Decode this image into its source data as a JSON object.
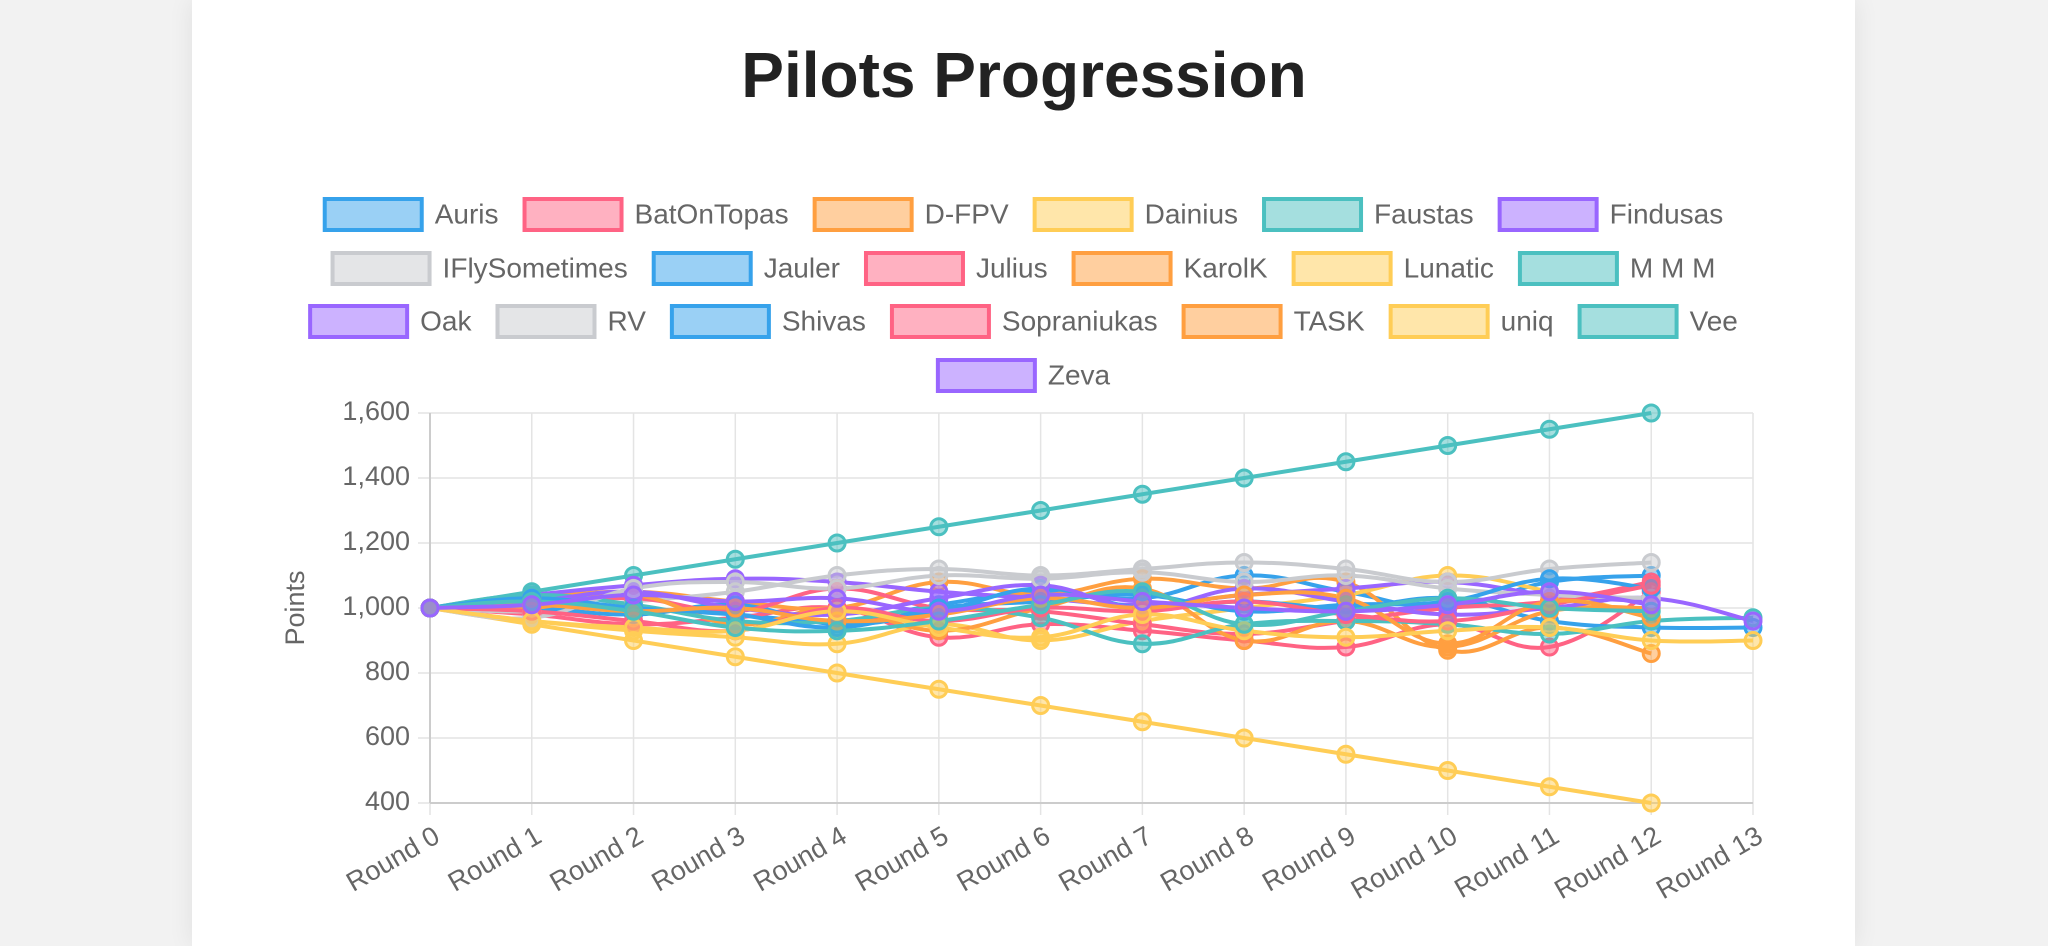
{
  "chart_data": {
    "type": "line",
    "title": "Pilots Progression",
    "ylabel": "Points",
    "categories": [
      "Round 0",
      "Round 1",
      "Round 2",
      "Round 3",
      "Round 4",
      "Round 5",
      "Round 6",
      "Round 7",
      "Round 8",
      "Round 9",
      "Round 10",
      "Round 11",
      "Round 12",
      "Round 13"
    ],
    "ylim": [
      400,
      1600
    ],
    "yticks": [
      400,
      600,
      800,
      {
        "value": 1000,
        "label": "1,000"
      },
      {
        "value": 1200,
        "label": "1,200"
      },
      {
        "value": 1400,
        "label": "1,400"
      },
      {
        "value": 1600,
        "label": "1,600"
      }
    ],
    "grid": true,
    "legend": "top",
    "series": [
      {
        "name": "Auris",
        "color": "#36a2eb",
        "values": [
          1000,
          1020,
          1000,
          980,
          960,
          1010,
          1050,
          1030,
          1100,
          1050,
          1000,
          1080,
          1100,
          null
        ]
      },
      {
        "name": "BatOnTopas",
        "color": "#ff6384",
        "values": [
          1000,
          980,
          950,
          970,
          1000,
          910,
          950,
          930,
          900,
          880,
          950,
          880,
          1050,
          null
        ]
      },
      {
        "name": "D-FPV",
        "color": "#ff9f40",
        "values": [
          1000,
          1030,
          1050,
          1020,
          1000,
          1080,
          1040,
          1090,
          1060,
          1080,
          870,
          940,
          860,
          null
        ]
      },
      {
        "name": "Dainius",
        "color": "#ffcd56",
        "values": [
          1000,
          960,
          930,
          910,
          890,
          950,
          900,
          960,
          1000,
          1040,
          1100,
          1050,
          970,
          null
        ]
      },
      {
        "name": "Faustas",
        "color": "#4bc0c0",
        "values": [
          1000,
          1050,
          1100,
          1150,
          1200,
          1250,
          1300,
          1350,
          1400,
          1450,
          1500,
          1550,
          1600,
          null
        ]
      },
      {
        "name": "Findusas",
        "color": "#9966ff",
        "values": [
          1000,
          1040,
          1070,
          1090,
          1080,
          1050,
          1030,
          1010,
          1040,
          1060,
          1080,
          1040,
          1020,
          null
        ]
      },
      {
        "name": "IFlySometimes",
        "color": "#c9cbcf",
        "values": [
          1000,
          990,
          1020,
          1050,
          1100,
          1120,
          1100,
          1120,
          1140,
          1120,
          1080,
          1120,
          1140,
          null
        ]
      },
      {
        "name": "Jauler",
        "color": "#36a2eb",
        "values": [
          1000,
          1000,
          980,
          1010,
          950,
          990,
          1060,
          1000,
          1020,
          1000,
          1030,
          960,
          940,
          940
        ]
      },
      {
        "name": "Julius",
        "color": "#ff6384",
        "values": [
          1000,
          1010,
          1030,
          990,
          1060,
          1000,
          990,
          950,
          920,
          960,
          1000,
          1020,
          1080,
          null
        ]
      },
      {
        "name": "KarolK",
        "color": "#ff9f40",
        "values": [
          1000,
          1000,
          1040,
          950,
          1000,
          930,
          1000,
          1060,
          900,
          960,
          880,
          990,
          1000,
          null
        ]
      },
      {
        "name": "Lunatic",
        "color": "#ffcd56",
        "values": [
          1000,
          950,
          900,
          850,
          800,
          750,
          700,
          650,
          600,
          550,
          500,
          450,
          400,
          null
        ]
      },
      {
        "name": "M M M",
        "color": "#4bc0c0",
        "values": [
          1000,
          1040,
          1010,
          960,
          960,
          1000,
          970,
          890,
          950,
          960,
          950,
          920,
          960,
          970
        ]
      },
      {
        "name": "Oak",
        "color": "#9966ff",
        "values": [
          1000,
          1020,
          1050,
          1000,
          980,
          1030,
          1070,
          1000,
          1060,
          1020,
          980,
          1000,
          1030,
          960
        ]
      },
      {
        "name": "RV",
        "color": "#c9cbcf",
        "values": [
          1000,
          970,
          1060,
          1080,
          1060,
          1100,
          1090,
          1110,
          1080,
          1100,
          1060,
          1040,
          1030,
          null
        ]
      },
      {
        "name": "Shivas",
        "color": "#36a2eb",
        "values": [
          1000,
          1030,
          1000,
          980,
          940,
          1000,
          1020,
          1040,
          990,
          1010,
          1020,
          1090,
          1060,
          null
        ]
      },
      {
        "name": "Sopraniukas",
        "color": "#ff6384",
        "values": [
          1000,
          990,
          960,
          930,
          1000,
          960,
          1000,
          990,
          1020,
          980,
          960,
          1010,
          1070,
          null
        ]
      },
      {
        "name": "TASK",
        "color": "#ff9f40",
        "values": [
          1000,
          1010,
          990,
          1000,
          960,
          980,
          1030,
          1000,
          1040,
          1030,
          890,
          1020,
          970,
          null
        ]
      },
      {
        "name": "uniq",
        "color": "#ffcd56",
        "values": [
          1000,
          960,
          940,
          930,
          990,
          940,
          910,
          980,
          930,
          910,
          930,
          940,
          900,
          900
        ]
      },
      {
        "name": "Vee",
        "color": "#4bc0c0",
        "values": [
          1000,
          1020,
          990,
          940,
          930,
          960,
          1010,
          1050,
          950,
          990,
          1030,
          1000,
          990,
          null
        ]
      },
      {
        "name": "Zeva",
        "color": "#9966ff",
        "values": [
          1000,
          1010,
          1040,
          1020,
          1030,
          990,
          1040,
          1020,
          1000,
          990,
          1010,
          1050,
          1010,
          null
        ]
      }
    ]
  }
}
